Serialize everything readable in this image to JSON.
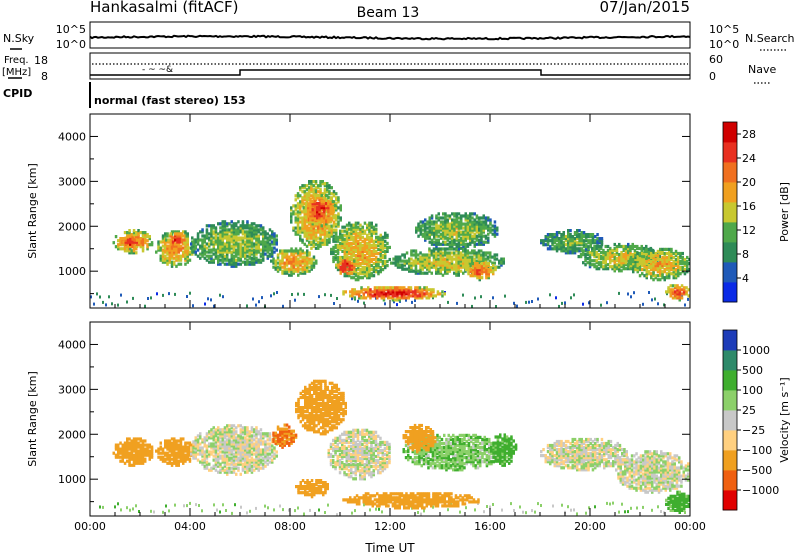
{
  "header": {
    "station": "Hankasalmi (fitACF)",
    "beam": "Beam 13",
    "date": "07/Jan/2015"
  },
  "nsky_strip": {
    "left_label": "N.Sky",
    "right_label": "N.Search",
    "left_ticks": [
      "10^5",
      "10^0"
    ],
    "right_ticks": [
      "10^5",
      "10^0"
    ]
  },
  "freq_strip": {
    "left_label_line1": "Freq.",
    "left_label_line2": "[MHz]",
    "left_ticks": [
      "18",
      "8"
    ],
    "right_label": "Nave",
    "right_ticks": [
      "60",
      "0"
    ],
    "cpid_label": "CPID",
    "mode_text": "normal (fast stereo) 153"
  },
  "chart_data": [
    {
      "type": "heatmap",
      "panel": "power",
      "ylabel": "Slant Range [km]",
      "xlabel": "",
      "x_ticks": [
        "00:00",
        "04:00",
        "08:00",
        "12:00",
        "16:00",
        "20:00",
        "00:00"
      ],
      "y_ticks": [
        "1000",
        "2000",
        "3000",
        "4000"
      ],
      "ylim": [
        180,
        4500
      ],
      "xlim_hours": [
        0,
        24
      ],
      "colorbar": {
        "label": "Power [dB]",
        "ticks": [
          "4",
          "8",
          "12",
          "16",
          "20",
          "24",
          "28"
        ],
        "range": [
          0,
          30
        ],
        "colors": [
          "#0a2ae6",
          "#1f5ab8",
          "#2e8b57",
          "#4fa84a",
          "#c8c830",
          "#f0a020",
          "#f07020",
          "#e83020",
          "#d00000"
        ]
      },
      "regions": [
        {
          "t": [
            0.9,
            2.5
          ],
          "r": [
            1400,
            1900
          ],
          "level": 22
        },
        {
          "t": [
            1.2,
            2.0
          ],
          "r": [
            1500,
            1800
          ],
          "level": 26
        },
        {
          "t": [
            2.6,
            4.2
          ],
          "r": [
            1100,
            1900
          ],
          "level": 20
        },
        {
          "t": [
            3.0,
            3.8
          ],
          "r": [
            1550,
            1850
          ],
          "level": 27
        },
        {
          "t": [
            4.0,
            7.5
          ],
          "r": [
            1100,
            2100
          ],
          "level": 14
        },
        {
          "t": [
            7.2,
            9.0
          ],
          "r": [
            900,
            1500
          ],
          "level": 20
        },
        {
          "t": [
            8.0,
            10.0
          ],
          "r": [
            1500,
            3000
          ],
          "level": 20
        },
        {
          "t": [
            8.5,
            9.8
          ],
          "r": [
            2000,
            2700
          ],
          "level": 25
        },
        {
          "t": [
            9.6,
            12.0
          ],
          "r": [
            800,
            2100
          ],
          "level": 18
        },
        {
          "t": [
            9.8,
            10.6
          ],
          "r": [
            900,
            1300
          ],
          "level": 27
        },
        {
          "t": [
            10.0,
            14.2
          ],
          "r": [
            350,
            650
          ],
          "level": 26
        },
        {
          "t": [
            12.0,
            16.5
          ],
          "r": [
            900,
            1500
          ],
          "level": 16
        },
        {
          "t": [
            13.0,
            16.3
          ],
          "r": [
            1500,
            2300
          ],
          "level": 14
        },
        {
          "t": [
            15.0,
            16.2
          ],
          "r": [
            800,
            1200
          ],
          "level": 23
        },
        {
          "t": [
            18.0,
            20.5
          ],
          "r": [
            1400,
            1900
          ],
          "level": 12
        },
        {
          "t": [
            19.5,
            22.8
          ],
          "r": [
            1000,
            1600
          ],
          "level": 16
        },
        {
          "t": [
            21.5,
            24.0
          ],
          "r": [
            800,
            1500
          ],
          "level": 18
        },
        {
          "t": [
            23.0,
            24.0
          ],
          "r": [
            350,
            700
          ],
          "level": 24
        }
      ],
      "ground_scatter_band": {
        "r": [
          180,
          500
        ],
        "level": 6
      }
    },
    {
      "type": "heatmap",
      "panel": "velocity",
      "ylabel": "Slant Range [km]",
      "xlabel": "Time UT",
      "x_ticks": [
        "00:00",
        "04:00",
        "08:00",
        "12:00",
        "16:00",
        "20:00",
        "00:00"
      ],
      "y_ticks": [
        "1000",
        "2000",
        "3000",
        "4000"
      ],
      "ylim": [
        180,
        4500
      ],
      "xlim_hours": [
        0,
        24
      ],
      "colorbar": {
        "label": "Velocity [m s⁻¹]",
        "ticks": [
          "1000",
          "500",
          "100",
          "25",
          "−25",
          "−100",
          "−500",
          "−1000"
        ],
        "colors": [
          "#1d3cb8",
          "#2e8a6a",
          "#3fae2e",
          "#8cd06a",
          "#c8c8c8",
          "#ffd080",
          "#f0a020",
          "#f06010",
          "#e00000"
        ]
      },
      "regions": [
        {
          "t": [
            0.9,
            2.5
          ],
          "r": [
            1300,
            1900
          ],
          "v": -300
        },
        {
          "t": [
            2.6,
            4.2
          ],
          "r": [
            1300,
            1900
          ],
          "v": -250
        },
        {
          "t": [
            4.0,
            7.5
          ],
          "r": [
            1100,
            2200
          ],
          "v": 0
        },
        {
          "t": [
            7.2,
            8.2
          ],
          "r": [
            1700,
            2200
          ],
          "v": -500
        },
        {
          "t": [
            8.2,
            10.2
          ],
          "r": [
            2000,
            3200
          ],
          "v": -400
        },
        {
          "t": [
            8.2,
            9.5
          ],
          "r": [
            600,
            1000
          ],
          "v": -300
        },
        {
          "t": [
            9.5,
            12.0
          ],
          "r": [
            1000,
            2100
          ],
          "v": 0
        },
        {
          "t": [
            10.0,
            15.5
          ],
          "r": [
            350,
            700
          ],
          "v": -250
        },
        {
          "t": [
            12.5,
            16.5
          ],
          "r": [
            1200,
            2000
          ],
          "v": 80
        },
        {
          "t": [
            12.5,
            13.8
          ],
          "r": [
            1600,
            2200
          ],
          "v": -300
        },
        {
          "t": [
            16.0,
            17.0
          ],
          "r": [
            1300,
            2000
          ],
          "v": 150
        },
        {
          "t": [
            18.0,
            21.5
          ],
          "r": [
            1200,
            1900
          ],
          "v": 0
        },
        {
          "t": [
            21.0,
            24.0
          ],
          "r": [
            700,
            1600
          ],
          "v": 0
        },
        {
          "t": [
            23.0,
            24.0
          ],
          "r": [
            250,
            700
          ],
          "v": 150
        }
      ],
      "ground_scatter_band": {
        "r": [
          180,
          450
        ],
        "v": 60
      }
    }
  ]
}
